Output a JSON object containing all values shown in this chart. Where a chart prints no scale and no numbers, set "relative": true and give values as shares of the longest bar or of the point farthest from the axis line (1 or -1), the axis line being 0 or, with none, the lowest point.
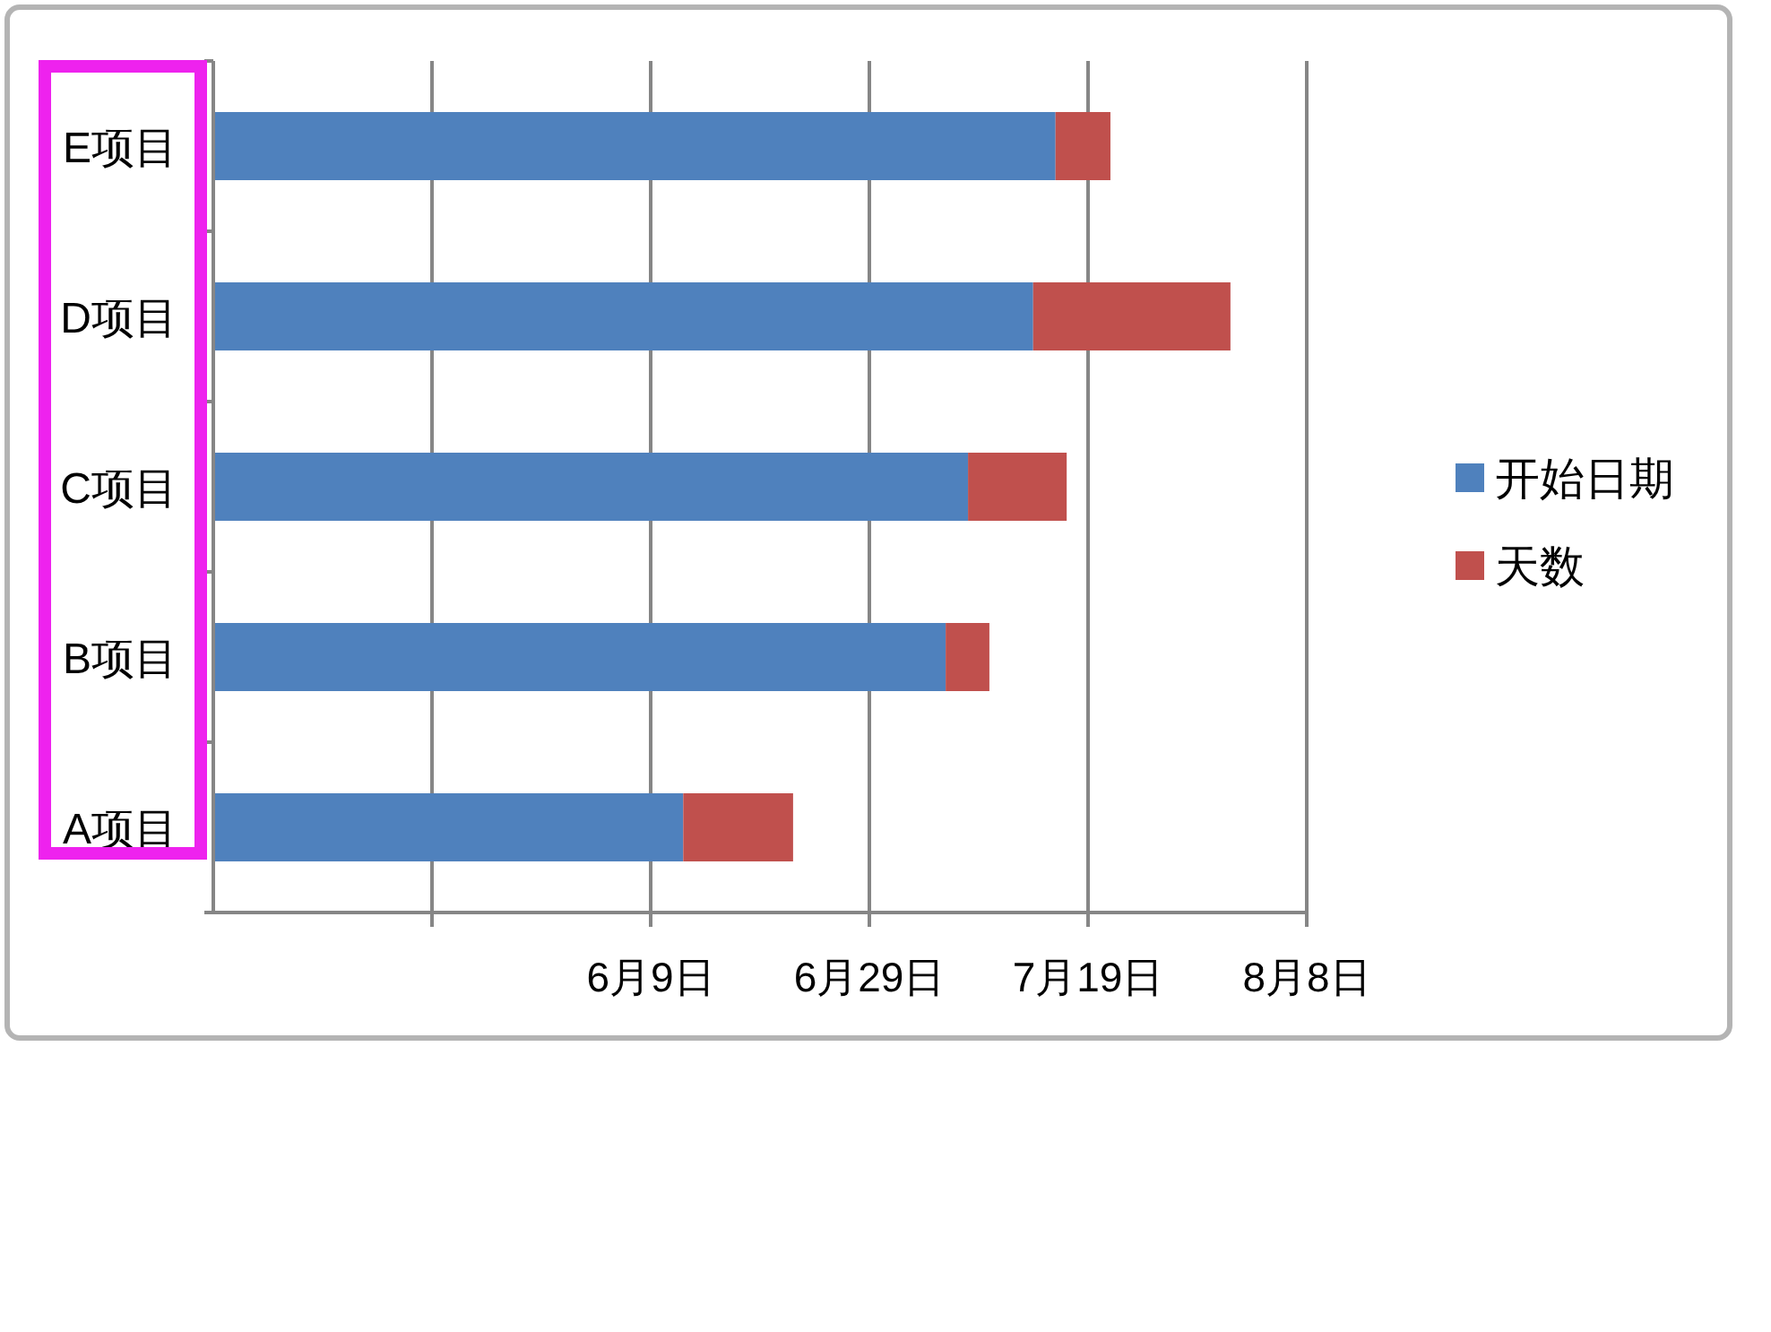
{
  "chart_data": {
    "type": "bar",
    "orientation": "horizontal",
    "stacked": true,
    "relative": true,
    "categories": [
      "E项目",
      "D项目",
      "C项目",
      "B项目",
      "A项目"
    ],
    "series": [
      {
        "name": "开始日期",
        "color": "#4f81bd",
        "values": [
          0.828,
          0.806,
          0.742,
          0.72,
          0.462
        ]
      },
      {
        "name": "天数",
        "color": "#c0504d",
        "values": [
          0.054,
          0.194,
          0.097,
          0.043,
          0.108
        ]
      }
    ],
    "ref_lines": [
      {
        "axis": "x",
        "value": 0.215,
        "color": "#868686"
      },
      {
        "axis": "x",
        "value": 0.43,
        "label": "6月9日",
        "color": "#868686"
      },
      {
        "axis": "x",
        "value": 0.645,
        "label": "6月29日",
        "color": "#868686"
      },
      {
        "axis": "x",
        "value": 0.86,
        "label": "7月19日",
        "color": "#868686"
      },
      {
        "axis": "x",
        "value": 1.075,
        "label": "8月8日",
        "color": "#868686"
      }
    ],
    "legend": "right"
  }
}
